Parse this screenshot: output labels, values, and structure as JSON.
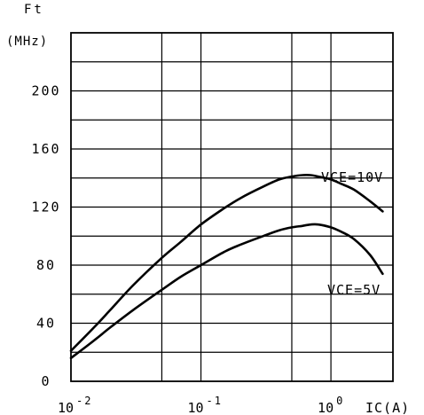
{
  "chart_data": {
    "type": "line",
    "x_scale": "log",
    "xlabel": "IC(A)",
    "ylabel_line1": "Ft",
    "ylabel_line2": "(MHz)",
    "xlim": [
      0.01,
      3
    ],
    "ylim": [
      0,
      240
    ],
    "grid": true,
    "x_ticks": [
      {
        "value": 0.01,
        "base": "10",
        "exp": "-2"
      },
      {
        "value": 0.1,
        "base": "10",
        "exp": "-1"
      },
      {
        "value": 1,
        "base": "10",
        "exp": "0"
      }
    ],
    "y_ticks": [
      {
        "value": 0,
        "label": "0"
      },
      {
        "value": 40,
        "label": "40"
      },
      {
        "value": 80,
        "label": "80"
      },
      {
        "value": 120,
        "label": "120"
      },
      {
        "value": 160,
        "label": "160"
      },
      {
        "value": 200,
        "label": "200"
      }
    ],
    "series": [
      {
        "name": "VCE=10V",
        "x": [
          0.01,
          0.015,
          0.02,
          0.03,
          0.05,
          0.07,
          0.1,
          0.15,
          0.2,
          0.3,
          0.4,
          0.5,
          0.6,
          0.7,
          0.8,
          1.0,
          1.2,
          1.5,
          2.0,
          2.5
        ],
        "y": [
          21,
          37,
          49,
          66,
          85,
          96,
          108,
          119,
          126,
          134,
          139,
          141,
          142,
          142,
          141,
          139,
          136,
          132,
          124,
          117
        ]
      },
      {
        "name": "VCE=5V",
        "x": [
          0.01,
          0.015,
          0.02,
          0.03,
          0.05,
          0.07,
          0.1,
          0.15,
          0.2,
          0.3,
          0.4,
          0.5,
          0.6,
          0.7,
          0.8,
          1.0,
          1.2,
          1.5,
          2.0,
          2.5
        ],
        "y": [
          16,
          28,
          37,
          49,
          63,
          72,
          80,
          89,
          94,
          100,
          104,
          106,
          107,
          108,
          108,
          106,
          103,
          98,
          87,
          74
        ]
      }
    ]
  }
}
